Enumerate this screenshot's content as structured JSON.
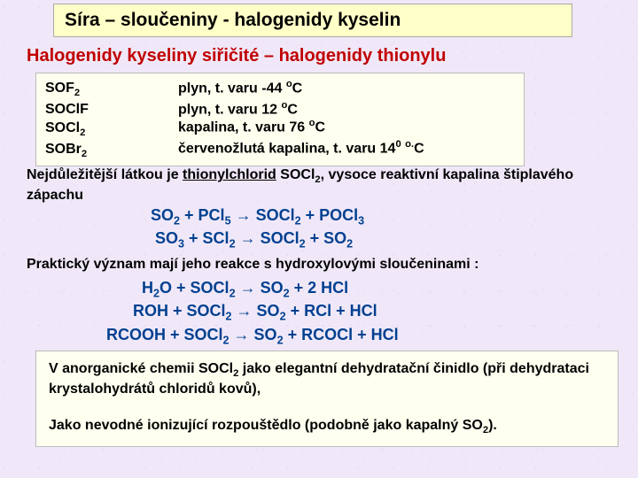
{
  "title": "Síra – sloučeniny  - halogenidy kyselin",
  "subtitle": "Halogenidy kyseliny siřičité – halogenidy thionylu",
  "compounds": [
    {
      "formula_html": "SOF<sub>2</sub>",
      "desc_html": "plyn, t. varu  -44 <sup>o</sup>C"
    },
    {
      "formula_html": "SOClF",
      "desc_html": "plyn, t. varu  12 <sup>o</sup>C"
    },
    {
      "formula_html": "SOCl<sub>2</sub>",
      "desc_html": "kapalina, t. varu  76 <sup>o</sup>C"
    },
    {
      "formula_html": "SOBr<sub>2</sub>",
      "desc_html": "červenožlutá kapalina, t. varu  14<sup>0</sup> <sup>o.</sup>C"
    }
  ],
  "para1_html": "Nejdůležitější látkou je <span class=\"underline\">thionylchlorid</span>  SOCl<sub>2</sub>, vysoce reaktivní kapalina štiplavého zápachu",
  "eq1_html": "SO<sub>2</sub>  +  PCl<sub>5</sub>  →  SOCl<sub>2</sub>  +  POCl<sub>3</sub><br>&nbsp;SO<sub>3</sub>  +  SCl<sub>2</sub>  →  SOCl<sub>2</sub>  +  SO<sub>2</sub>",
  "para2": "Praktický význam mají jeho reakce s hydroxylovými sloučeninami :",
  "eq2_html": "&nbsp;&nbsp;&nbsp;&nbsp;&nbsp;&nbsp;&nbsp;&nbsp;H<sub>2</sub>O  +  SOCl<sub>2</sub>  →  SO<sub>2</sub>  +  2 HCl<br>&nbsp;&nbsp;&nbsp;&nbsp;&nbsp;&nbsp;ROH  +  SOCl<sub>2</sub>  →  SO<sub>2</sub>  +  RCl  +  HCl<br>RCOOH  +  SOCl<sub>2</sub>  →  SO<sub>2</sub>  +  RCOCl  +  HCl",
  "bottom_html": "V anorganické chemii SOCl<sub>2</sub> jako elegantní dehydratační činidlo (při dehydrataci krystalohydrátů chloridů kovů),<br><br>Jako nevodné ionizující rozpouštědlo (podobně jako kapalný SO<sub>2</sub>).",
  "colors": {
    "title_bg": "#ffffc8",
    "box_bg": "#fffff0",
    "subtitle_color": "#c00000",
    "equation_color": "#004090",
    "page_bg": "#f0e8f8"
  }
}
